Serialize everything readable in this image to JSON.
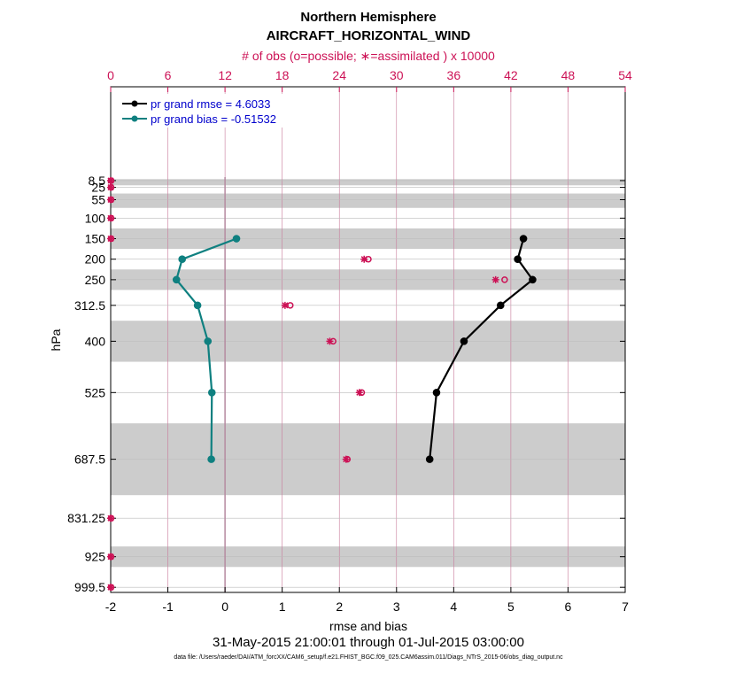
{
  "chart_data": {
    "type": "line",
    "title": "Northern Hemisphere",
    "subtitle": "AIRCRAFT_HORIZONTAL_WIND",
    "top_axis_label": "# of obs (o=possible; ∗=assimilated ) x 10000",
    "xlabel": "rmse and bias",
    "ylabel": "hPa",
    "date_range": "31-May-2015 21:00:01 through 01-Jul-2015 03:00:00",
    "footnote": "data file: /Users/raeder/DAI/ATM_forcXX/CAM6_setup/f.e21.FHIST_BGC.f09_025.CAM6assim.011/Diags_NTrS_2015-06/obs_diag_output.nc",
    "xlim": [
      -2,
      7
    ],
    "xticks": [
      "-2",
      "-1",
      "0",
      "1",
      "2",
      "3",
      "4",
      "5",
      "6",
      "7"
    ],
    "top_xlim": [
      0,
      54
    ],
    "top_xticks": [
      "0",
      "6",
      "12",
      "18",
      "24",
      "30",
      "36",
      "42",
      "48",
      "54"
    ],
    "y_levels": [
      8.5,
      25,
      55,
      100,
      150,
      200,
      250,
      312.5,
      400,
      525,
      687.5,
      831.25,
      925,
      999.5
    ],
    "y_tick_labels": [
      "8.5",
      "25",
      "55",
      "100",
      "150",
      "200",
      "250",
      "312.5",
      "400",
      "525",
      "687.5",
      "831.25",
      "925",
      "999.5"
    ],
    "gray_bands": [
      [
        5,
        20
      ],
      [
        40,
        75
      ],
      [
        125,
        175
      ],
      [
        225,
        275
      ],
      [
        350,
        450
      ],
      [
        600,
        775
      ],
      [
        900,
        950
      ]
    ],
    "legend_position": "top-left",
    "grid": true,
    "series": [
      {
        "name": "pr grand rmse = 4.6033",
        "color": "#000000",
        "levels": [
          150,
          200,
          250,
          312.5,
          400,
          525,
          687.5
        ],
        "values": [
          5.22,
          5.12,
          5.38,
          4.82,
          4.18,
          3.7,
          3.58
        ]
      },
      {
        "name": "pr grand bias = -0.51532",
        "color": "#0f8080",
        "levels": [
          150,
          200,
          250,
          312.5,
          400,
          525,
          687.5
        ],
        "values": [
          0.2,
          -0.75,
          -0.85,
          -0.48,
          -0.3,
          -0.23,
          -0.24
        ]
      }
    ],
    "obs_possible": {
      "color": "#cc1155",
      "levels": [
        8.5,
        25,
        55,
        100,
        150,
        200,
        250,
        312.5,
        400,
        525,
        687.5,
        831.25,
        925,
        999.5
      ],
      "values": [
        0,
        0,
        0,
        0,
        0,
        27.0,
        41.3,
        18.8,
        23.3,
        26.3,
        24.8,
        0,
        0,
        0
      ]
    },
    "obs_assimilated": {
      "color": "#cc1155",
      "levels": [
        8.5,
        25,
        55,
        100,
        150,
        200,
        250,
        312.5,
        400,
        525,
        687.5,
        831.25,
        925,
        999.5
      ],
      "values": [
        0,
        0,
        0,
        0,
        0,
        26.6,
        40.4,
        18.3,
        23.0,
        26.1,
        24.7,
        0,
        0,
        0
      ]
    }
  }
}
